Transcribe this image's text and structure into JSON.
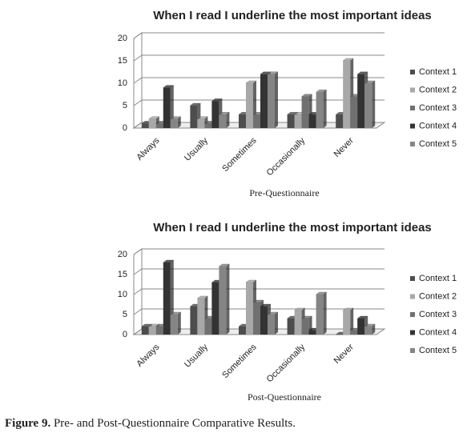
{
  "chart_data": [
    {
      "type": "bar",
      "title": "When I read I underline the most important ideas",
      "x_label": "Pre-Questionnaire",
      "categories": [
        "Always",
        "Usually",
        "Sometimes",
        "Occasionally",
        "Never"
      ],
      "series": [
        {
          "name": "Context 1",
          "color": "#4d4d4d",
          "values": [
            1,
            5,
            3,
            3,
            3
          ]
        },
        {
          "name": "Context 2",
          "color": "#a8a8a8",
          "values": [
            2,
            2,
            10,
            3,
            15
          ]
        },
        {
          "name": "Context 3",
          "color": "#707070",
          "values": [
            1,
            1,
            3,
            7,
            7
          ]
        },
        {
          "name": "Context 4",
          "color": "#333333",
          "values": [
            9,
            6,
            12,
            3,
            12
          ]
        },
        {
          "name": "Context 5",
          "color": "#858585",
          "values": [
            2,
            3,
            12,
            8,
            10
          ]
        }
      ],
      "ylim": [
        0,
        20
      ],
      "yticks": [
        0,
        5,
        10,
        15,
        20
      ],
      "grid": true,
      "legend": "right"
    },
    {
      "type": "bar",
      "title": "When I read I underline the most important ideas",
      "x_label": "Post-Questionnaire",
      "categories": [
        "Always",
        "Usually",
        "Sometimes",
        "Occasionally",
        "Never"
      ],
      "series": [
        {
          "name": "Context 1",
          "color": "#4d4d4d",
          "values": [
            2,
            7,
            2,
            4,
            0
          ]
        },
        {
          "name": "Context 2",
          "color": "#a8a8a8",
          "values": [
            2,
            9,
            13,
            6,
            6
          ]
        },
        {
          "name": "Context 3",
          "color": "#707070",
          "values": [
            2,
            4,
            8,
            4,
            1
          ]
        },
        {
          "name": "Context 4",
          "color": "#333333",
          "values": [
            18,
            13,
            7,
            1,
            4
          ]
        },
        {
          "name": "Context 5",
          "color": "#858585",
          "values": [
            5,
            17,
            5,
            10,
            2
          ]
        }
      ],
      "ylim": [
        0,
        20
      ],
      "yticks": [
        0,
        5,
        10,
        15,
        20
      ],
      "grid": true,
      "legend": "right"
    }
  ],
  "caption": {
    "label": "Figure 9.",
    "text": "Pre- and Post-Questionnaire Comparative Results."
  }
}
